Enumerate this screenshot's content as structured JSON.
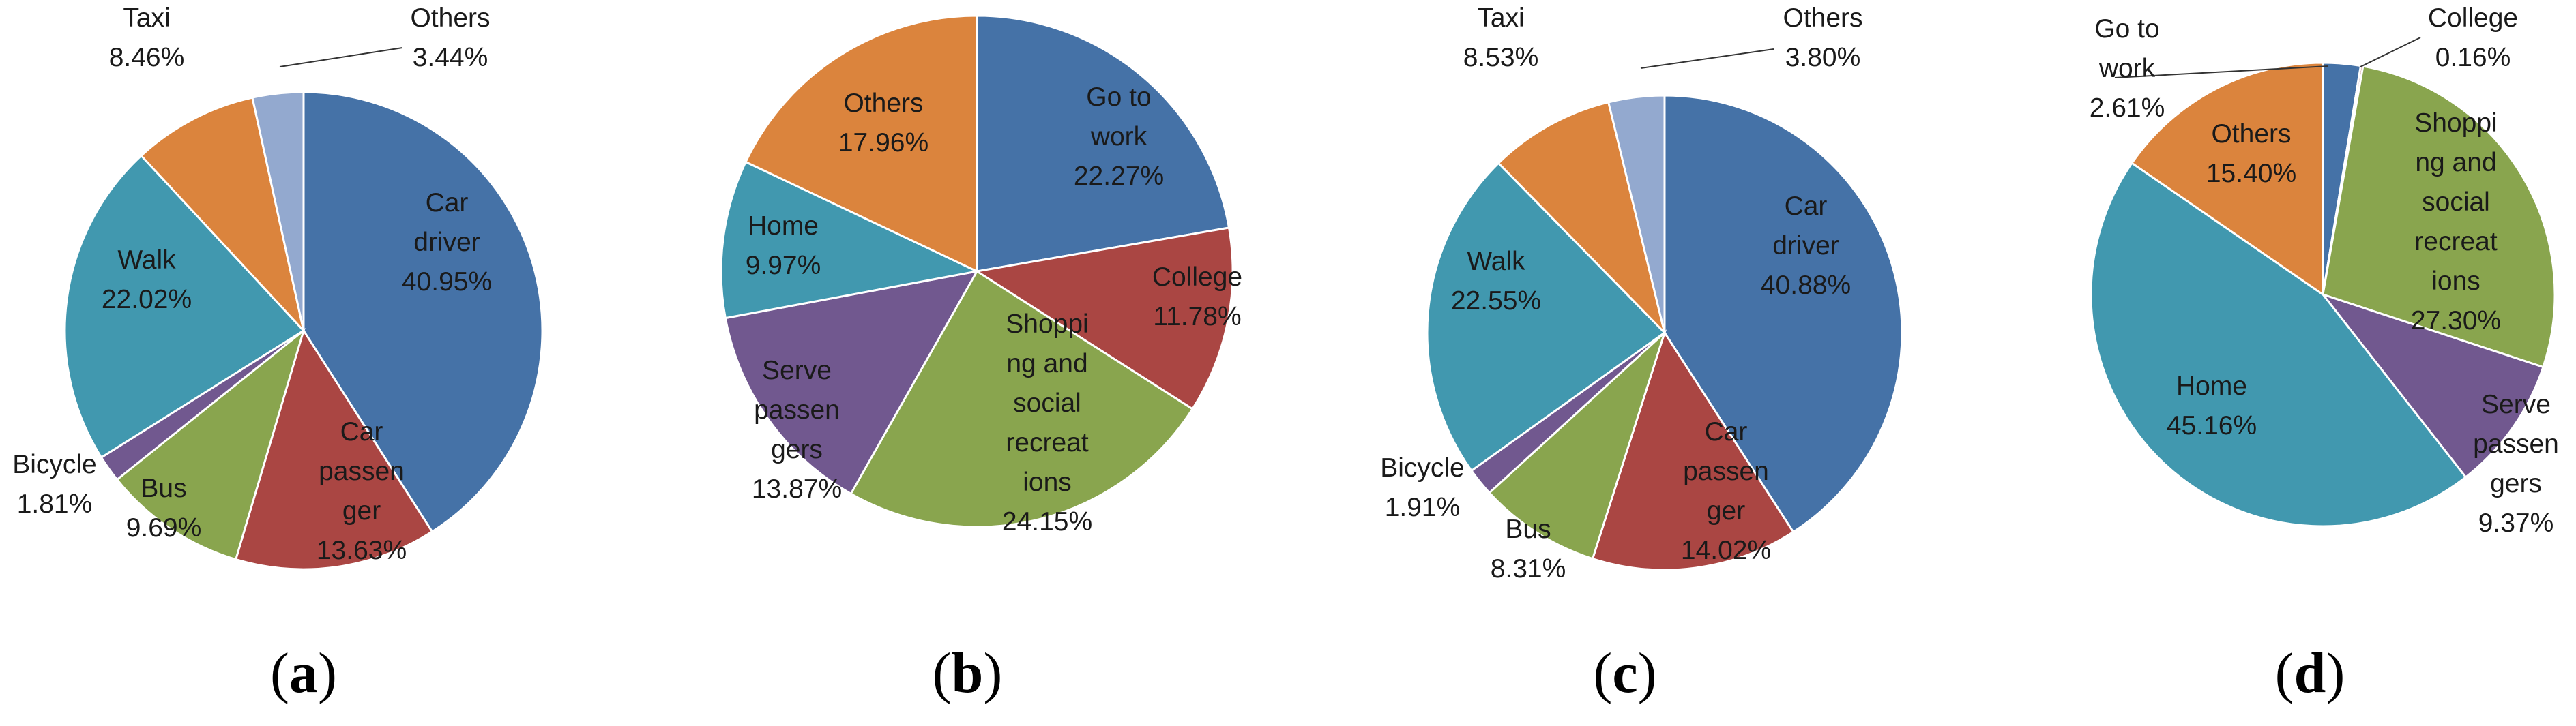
{
  "chart_data": [
    {
      "type": "pie",
      "panel_label": "a",
      "slices": [
        {
          "name": "Car driver",
          "label_lines": [
            "Car",
            "driver"
          ],
          "value": 40.95,
          "value_text": "40.95%",
          "color": "#4572a7"
        },
        {
          "name": "Car passenger",
          "label_lines": [
            "Car",
            "passen",
            "ger"
          ],
          "value": 13.63,
          "value_text": "13.63%",
          "color": "#aa4643"
        },
        {
          "name": "Bus",
          "label_lines": [
            "Bus"
          ],
          "value": 9.69,
          "value_text": "9.69%",
          "color": "#89a54e"
        },
        {
          "name": "Bicycle",
          "label_lines": [
            "Bicycle"
          ],
          "value": 1.81,
          "value_text": "1.81%",
          "color": "#71588f"
        },
        {
          "name": "Walk",
          "label_lines": [
            "Walk"
          ],
          "value": 22.02,
          "value_text": "22.02%",
          "color": "#4198af"
        },
        {
          "name": "Taxi",
          "label_lines": [
            "Taxi"
          ],
          "value": 8.46,
          "value_text": "8.46%",
          "color": "#db843d"
        },
        {
          "name": "Others",
          "label_lines": [
            "Others"
          ],
          "value": 3.44,
          "value_text": "3.44%",
          "color": "#93a9cf"
        }
      ]
    },
    {
      "type": "pie",
      "panel_label": "b",
      "slices": [
        {
          "name": "Go to work",
          "label_lines": [
            "Go to",
            "work"
          ],
          "value": 22.27,
          "value_text": "22.27%",
          "color": "#4572a7"
        },
        {
          "name": "College",
          "label_lines": [
            "College"
          ],
          "value": 11.78,
          "value_text": "11.78%",
          "color": "#aa4643"
        },
        {
          "name": "Shopping and social recreations",
          "label_lines": [
            "Shoppi",
            "ng and",
            "social",
            "recreat",
            "ions"
          ],
          "value": 24.15,
          "value_text": "24.15%",
          "color": "#89a54e"
        },
        {
          "name": "Serve passengers",
          "label_lines": [
            "Serve",
            "passen",
            "gers"
          ],
          "value": 13.87,
          "value_text": "13.87%",
          "color": "#71588f"
        },
        {
          "name": "Home",
          "label_lines": [
            "Home"
          ],
          "value": 9.97,
          "value_text": "9.97%",
          "color": "#4198af"
        },
        {
          "name": "Others",
          "label_lines": [
            "Others"
          ],
          "value": 17.96,
          "value_text": "17.96%",
          "color": "#db843d"
        }
      ]
    },
    {
      "type": "pie",
      "panel_label": "c",
      "slices": [
        {
          "name": "Car driver",
          "label_lines": [
            "Car",
            "driver"
          ],
          "value": 40.88,
          "value_text": "40.88%",
          "color": "#4572a7"
        },
        {
          "name": "Car passenger",
          "label_lines": [
            "Car",
            "passen",
            "ger"
          ],
          "value": 14.02,
          "value_text": "14.02%",
          "color": "#aa4643"
        },
        {
          "name": "Bus",
          "label_lines": [
            "Bus"
          ],
          "value": 8.31,
          "value_text": "8.31%",
          "color": "#89a54e"
        },
        {
          "name": "Bicycle",
          "label_lines": [
            "Bicycle"
          ],
          "value": 1.91,
          "value_text": "1.91%",
          "color": "#71588f"
        },
        {
          "name": "Walk",
          "label_lines": [
            "Walk"
          ],
          "value": 22.55,
          "value_text": "22.55%",
          "color": "#4198af"
        },
        {
          "name": "Taxi",
          "label_lines": [
            "Taxi"
          ],
          "value": 8.53,
          "value_text": "8.53%",
          "color": "#db843d"
        },
        {
          "name": "Others",
          "label_lines": [
            "Others"
          ],
          "value": 3.8,
          "value_text": "3.80%",
          "color": "#93a9cf"
        }
      ]
    },
    {
      "type": "pie",
      "panel_label": "d",
      "slices": [
        {
          "name": "Go to work",
          "label_lines": [
            "Go to",
            "work"
          ],
          "value": 2.61,
          "value_text": "2.61%",
          "color": "#4572a7"
        },
        {
          "name": "College",
          "label_lines": [
            "College"
          ],
          "value": 0.16,
          "value_text": "0.16%",
          "color": "#aa4643"
        },
        {
          "name": "Shopping and social recreations",
          "label_lines": [
            "Shoppi",
            "ng and",
            "social",
            "recreat",
            "ions"
          ],
          "value": 27.3,
          "value_text": "27.30%",
          "color": "#89a54e"
        },
        {
          "name": "Serve passengers",
          "label_lines": [
            "Serve",
            "passen",
            "gers"
          ],
          "value": 9.37,
          "value_text": "9.37%",
          "color": "#71588f"
        },
        {
          "name": "Home",
          "label_lines": [
            "Home"
          ],
          "value": 45.16,
          "value_text": "45.16%",
          "color": "#4198af"
        },
        {
          "name": "Others",
          "label_lines": [
            "Others"
          ],
          "value": 15.4,
          "value_text": "15.40%",
          "color": "#db843d"
        }
      ]
    }
  ]
}
